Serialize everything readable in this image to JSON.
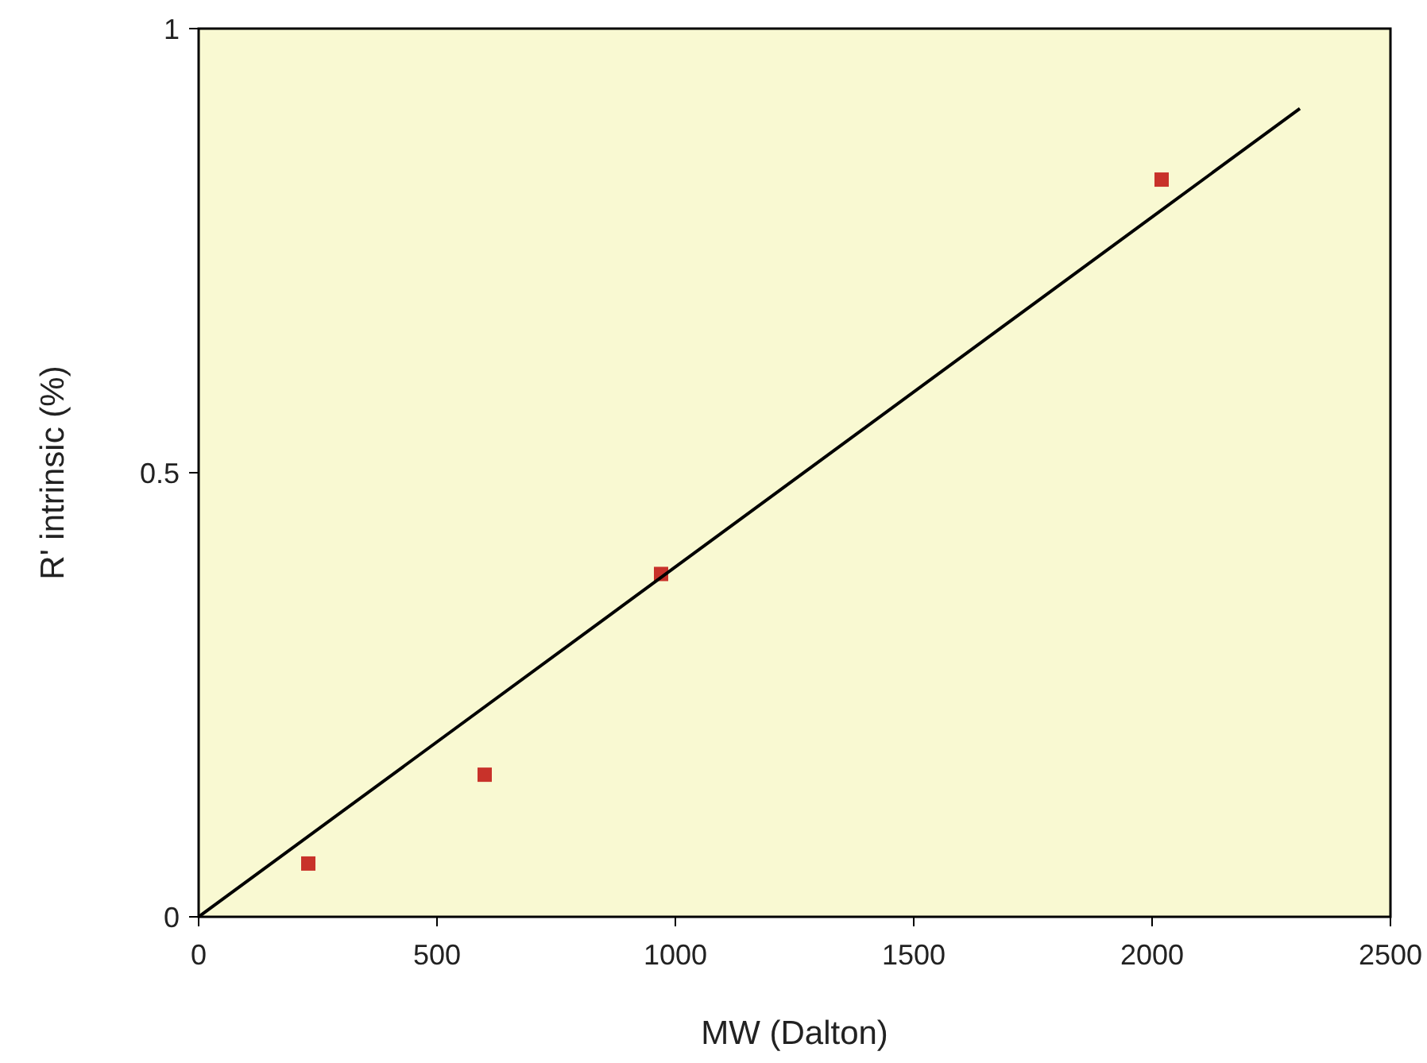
{
  "chart_data": {
    "type": "scatter",
    "xlabel": "MW (Dalton)",
    "ylabel": "R' intrinsic (%)",
    "xlim": [
      0,
      2500
    ],
    "xticks": [
      0,
      500,
      1000,
      1500,
      2000,
      2500
    ],
    "ylim": [
      0,
      1
    ],
    "yticks": [
      0,
      0.5,
      1
    ],
    "grid": false,
    "series": [
      {
        "marker": "square",
        "color": "#c8322a",
        "x": [
          230,
          600,
          970,
          2020
        ],
        "values": [
          0.06,
          0.16,
          0.386,
          0.83
        ]
      },
      {
        "type": "line",
        "color": "#000000",
        "x": [
          0,
          2310
        ],
        "values": [
          0,
          0.91
        ]
      }
    ]
  }
}
